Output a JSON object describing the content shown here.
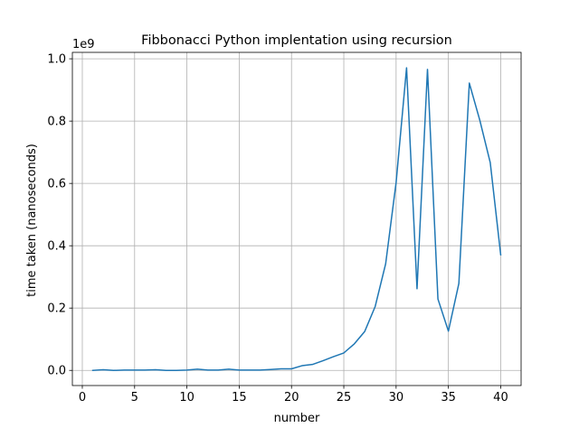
{
  "chart_data": {
    "type": "line",
    "title": "Fibbonacci Python implentation using recursion",
    "xlabel": "number",
    "ylabel": "time taken (nanoseconds)",
    "y_offset_label": "1e9",
    "xlim": [
      -0.95,
      41.95
    ],
    "ylim": [
      -0.0486,
      1.0206
    ],
    "xticks": [
      0,
      5,
      10,
      15,
      20,
      25,
      30,
      35,
      40
    ],
    "xtick_labels": [
      "0",
      "5",
      "10",
      "15",
      "20",
      "25",
      "30",
      "35",
      "40"
    ],
    "yticks": [
      0.0,
      0.2,
      0.4,
      0.6,
      0.8,
      1.0
    ],
    "ytick_labels": [
      "0.0",
      "0.2",
      "0.4",
      "0.6",
      "0.8",
      "1.0"
    ],
    "grid": true,
    "color": "#1f77b4",
    "series": [
      {
        "x": [
          1,
          2,
          3,
          4,
          5,
          6,
          7,
          8,
          9,
          10,
          11,
          12,
          13,
          14,
          15,
          16,
          17,
          18,
          19,
          20,
          21,
          22,
          23,
          24,
          25,
          26,
          27,
          28,
          29,
          30,
          31,
          32,
          33,
          34,
          35,
          36,
          37,
          38,
          39,
          40
        ],
        "y": [
          0.0,
          0.002,
          0.0,
          0.001,
          0.001,
          0.001,
          0.002,
          0.0,
          0.0,
          0.001,
          0.004,
          0.001,
          0.001,
          0.004,
          0.001,
          0.001,
          0.001,
          0.003,
          0.005,
          0.005,
          0.015,
          0.019,
          0.031,
          0.044,
          0.056,
          0.085,
          0.125,
          0.205,
          0.342,
          0.603,
          0.971,
          0.262,
          0.966,
          0.229,
          0.126,
          0.279,
          0.922,
          0.803,
          0.667,
          0.371
        ]
      }
    ]
  }
}
